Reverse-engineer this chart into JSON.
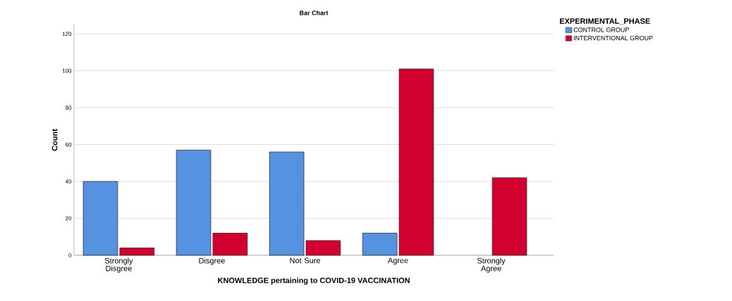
{
  "chart_data": {
    "type": "bar",
    "title": "Bar Chart",
    "xlabel": "KNOWLEDGE pertaining to COVID-19 VACCINATION",
    "ylabel": "Count",
    "legend_title": "EXPERIMENTAL_PHASE",
    "categories": [
      "Strongly Disgree",
      "Disgree",
      "Not Sure",
      "Agree",
      "Strongly Agree"
    ],
    "series": [
      {
        "name": "CONTROL GROUP",
        "color": "#5592e0",
        "values": [
          40,
          57,
          56,
          12,
          null
        ]
      },
      {
        "name": "INTERVENTIONAL GROUP",
        "color": "#d2002e",
        "values": [
          4,
          12,
          8,
          101,
          42
        ]
      }
    ],
    "ylim": [
      0,
      125
    ],
    "yticks": [
      0,
      20,
      40,
      60,
      80,
      100,
      120
    ],
    "grid": "y",
    "legend": "top right"
  }
}
